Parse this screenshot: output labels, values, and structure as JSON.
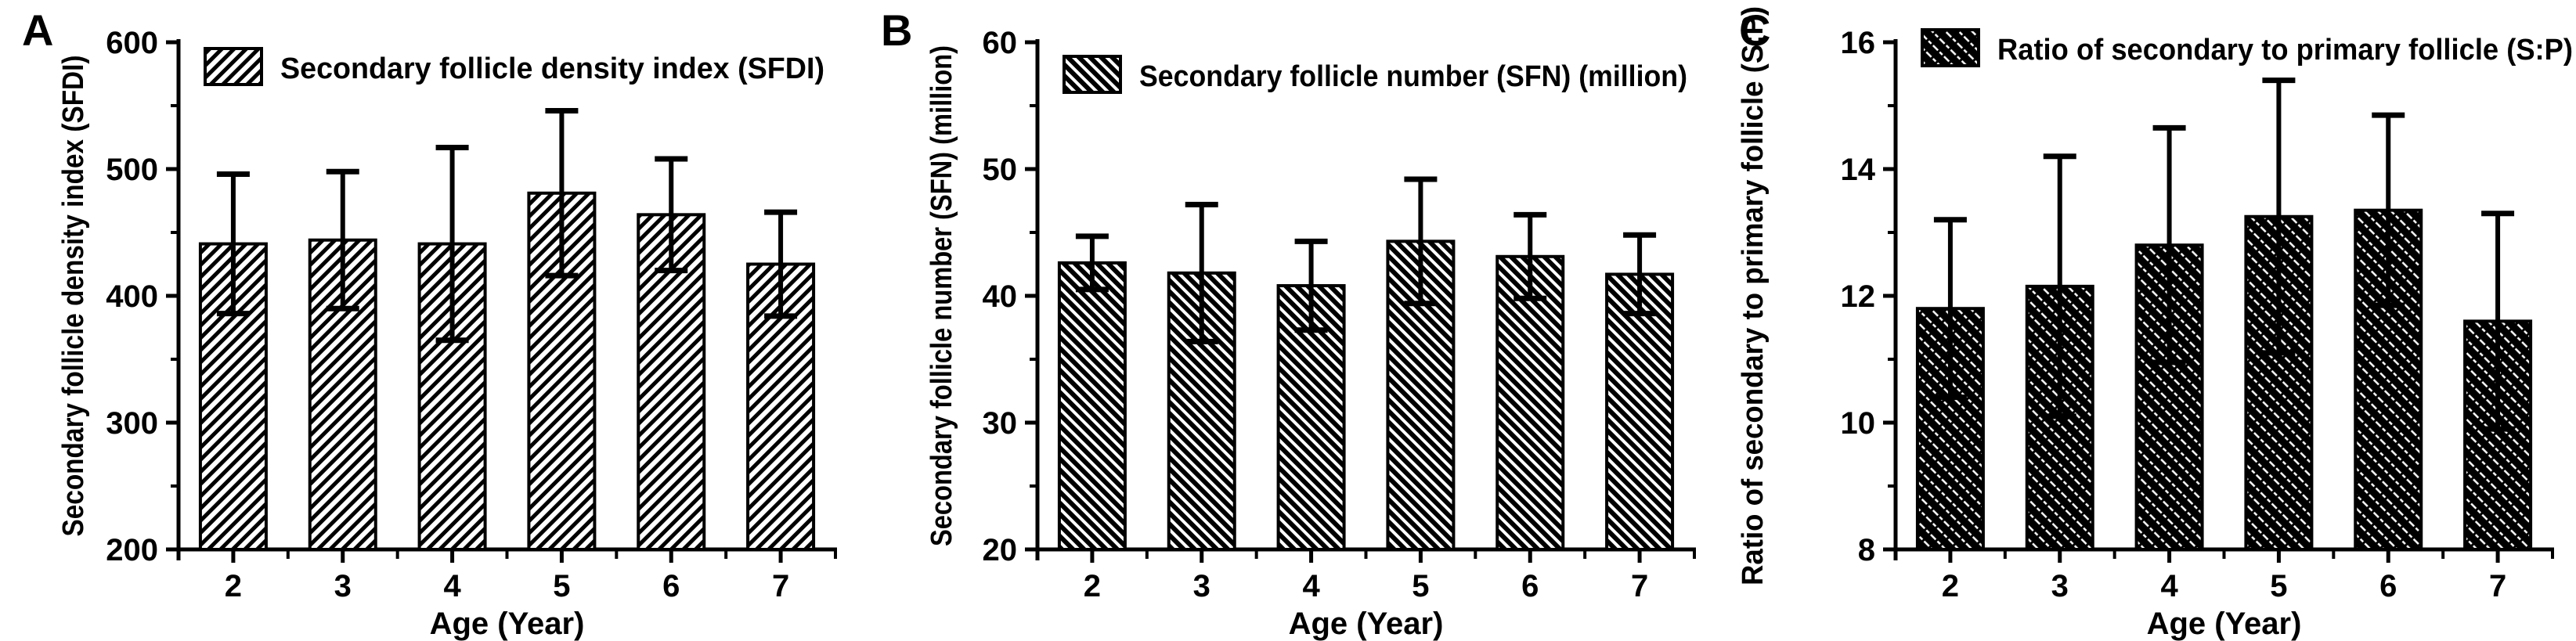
{
  "figure": {
    "background_color": "#ffffff",
    "foreground_color": "#000000",
    "panel_count": 3
  },
  "chart_data": [
    {
      "panel_label": "A",
      "type": "bar",
      "title": "",
      "legend": "Secondary follicle density index (SFDI)",
      "legend_position": "top-left-inside",
      "xlabel": "Age (Year)",
      "ylabel": "Secondary follicle density index (SFDI)",
      "categories": [
        "2",
        "3",
        "4",
        "5",
        "6",
        "7"
      ],
      "values": [
        441,
        444,
        441,
        481,
        464,
        425
      ],
      "errors": [
        55,
        54,
        76,
        65,
        44,
        41
      ],
      "ylim": [
        200,
        600
      ],
      "yticks": [
        200,
        300,
        400,
        500,
        600
      ],
      "y_minor_ticks": [
        250,
        350,
        450,
        550
      ],
      "grid": false,
      "hatch": "forward-diagonal",
      "bar_fill_background": "#ffffff",
      "hatch_color": "#000000",
      "layout": {
        "legend_y": 62,
        "ylabel_x": 106,
        "ylabel_text_length": 615,
        "legend_text_length": 695
      }
    },
    {
      "panel_label": "B",
      "type": "bar",
      "title": "",
      "legend": "Secondary follicle number (SFN) (million)",
      "legend_position": "top-left-inside",
      "xlabel": "Age (Year)",
      "ylabel": "Secondary follicle number (SFN) (million)",
      "categories": [
        "2",
        "3",
        "4",
        "5",
        "6",
        "7"
      ],
      "values": [
        42.6,
        41.8,
        40.8,
        44.3,
        43.1,
        41.7
      ],
      "errors": [
        2.1,
        5.4,
        3.5,
        4.9,
        3.3,
        3.1
      ],
      "ylim": [
        20,
        60
      ],
      "yticks": [
        20,
        30,
        40,
        50,
        60
      ],
      "y_minor_ticks": [
        25,
        35,
        45,
        55
      ],
      "grid": false,
      "hatch": "backward-diagonal",
      "bar_fill_background": "#ffffff",
      "hatch_color": "#000000",
      "layout": {
        "legend_y": 72,
        "ylabel_x": 118,
        "ylabel_text_length": 640,
        "legend_text_length": 700
      }
    },
    {
      "panel_label": "C",
      "type": "bar",
      "title": "",
      "legend": "Ratio of secondary to primary follicle (S:P)",
      "legend_position": "top-left-inside",
      "xlabel": "Age (Year)",
      "ylabel": "Ratio of secondary to primary follicle (S:P)",
      "categories": [
        "2",
        "3",
        "4",
        "5",
        "6",
        "7"
      ],
      "values": [
        11.8,
        12.15,
        12.8,
        13.25,
        13.35,
        11.6
      ],
      "errors": [
        1.4,
        2.05,
        1.85,
        2.15,
        1.5,
        1.7
      ],
      "ylim": [
        8,
        16
      ],
      "yticks": [
        8,
        10,
        12,
        14,
        16
      ],
      "y_minor_ticks": [
        9,
        11,
        13,
        15
      ],
      "grid": false,
      "hatch": "dark-backward-diagonal",
      "bar_fill_background": "#000000",
      "hatch_color": "#ffffff",
      "layout": {
        "legend_y": 38,
        "ylabel_x": 58,
        "ylabel_text_length": 740,
        "legend_text_length": 735
      }
    }
  ]
}
